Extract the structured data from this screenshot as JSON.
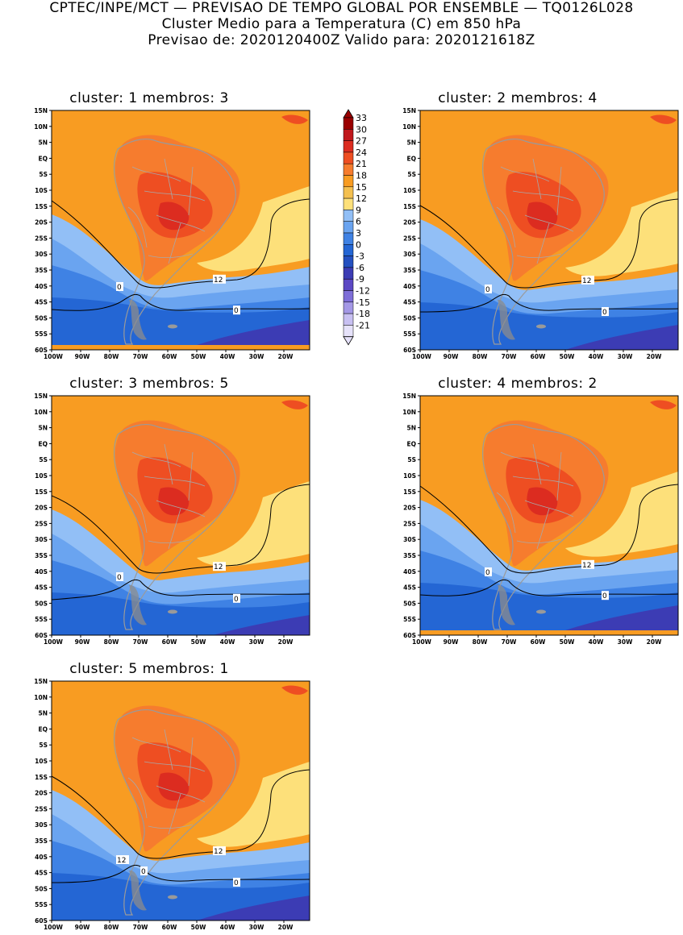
{
  "header": {
    "line1": "CPTEC/INPE/MCT — PREVISAO DE TEMPO GLOBAL POR ENSEMBLE — TQ0126L028",
    "line2": "Cluster Medio para a Temperatura (C) em 850 hPa",
    "line3": "Previsao de: 2020120400Z   Valido para: 2020121618Z"
  },
  "lat_labels": [
    "15N",
    "10N",
    "5N",
    "EQ",
    "5S",
    "10S",
    "15S",
    "20S",
    "25S",
    "30S",
    "35S",
    "40S",
    "45S",
    "50S",
    "55S",
    "60S"
  ],
  "lon_labels": [
    "100W",
    "90W",
    "80W",
    "70W",
    "60W",
    "50W",
    "40W",
    "30W",
    "20W"
  ],
  "colorbar": {
    "labels": [
      "33",
      "30",
      "27",
      "24",
      "21",
      "18",
      "15",
      "12",
      "9",
      "6",
      "3",
      "0",
      "-3",
      "-6",
      "-9",
      "-12",
      "-15",
      "-18",
      "-21"
    ],
    "colors": [
      "#9a0000",
      "#c0181c",
      "#dc2c20",
      "#ee4e22",
      "#f67c2e",
      "#f89c22",
      "#f4c050",
      "#fde07a",
      "#92bff6",
      "#6aa4f0",
      "#3f82e4",
      "#2466d4",
      "#2450c0",
      "#3c3cb4",
      "#5c48c4",
      "#7e6ed8",
      "#a498e6",
      "#c8c0f2",
      "#e6e2fa"
    ]
  },
  "clusters": [
    {
      "title": "cluster: 1   membros: 3",
      "contour_labels": [
        "12",
        "0",
        "0"
      ]
    },
    {
      "title": "cluster: 2   membros: 4",
      "contour_labels": [
        "12",
        "0",
        "0"
      ]
    },
    {
      "title": "cluster: 3   membros: 5",
      "contour_labels": [
        "12",
        "0",
        "0"
      ]
    },
    {
      "title": "cluster: 4   membros: 2",
      "contour_labels": [
        "12",
        "0",
        "0"
      ]
    },
    {
      "title": "cluster: 5   membros: 1",
      "contour_labels": [
        "12",
        "12",
        "0",
        "0"
      ]
    }
  ]
}
